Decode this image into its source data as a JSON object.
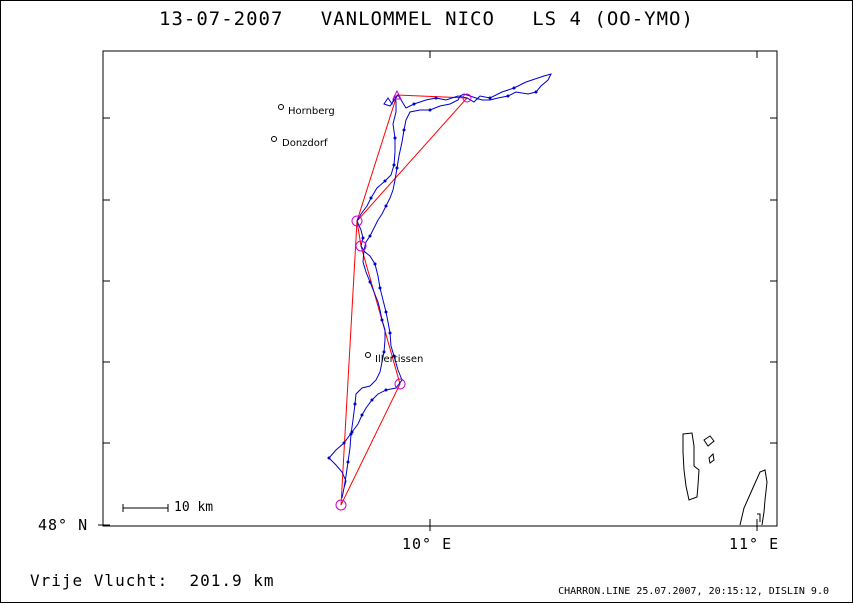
{
  "title": "13-07-2007   VANLOMMEL NICO   LS 4 (OO-YMO)",
  "axis": {
    "y_label": "48° N",
    "x_labels": [
      "10° E",
      "11° E"
    ]
  },
  "cities": [
    {
      "name": "Hornberg"
    },
    {
      "name": "Donzdorf"
    },
    {
      "name": "Illertissen"
    }
  ],
  "scale": {
    "label": "10 km"
  },
  "footer": {
    "distance_text": "Vrije Vlucht:  201.9 km",
    "credits": "CHARRON.LINE 25.07.2007, 20:15:12, DISLIN 9.0"
  },
  "colors": {
    "track": "#0000cc",
    "task_line": "#ff0000",
    "turnpoint": "#cc00cc",
    "frame": "#000000"
  }
}
